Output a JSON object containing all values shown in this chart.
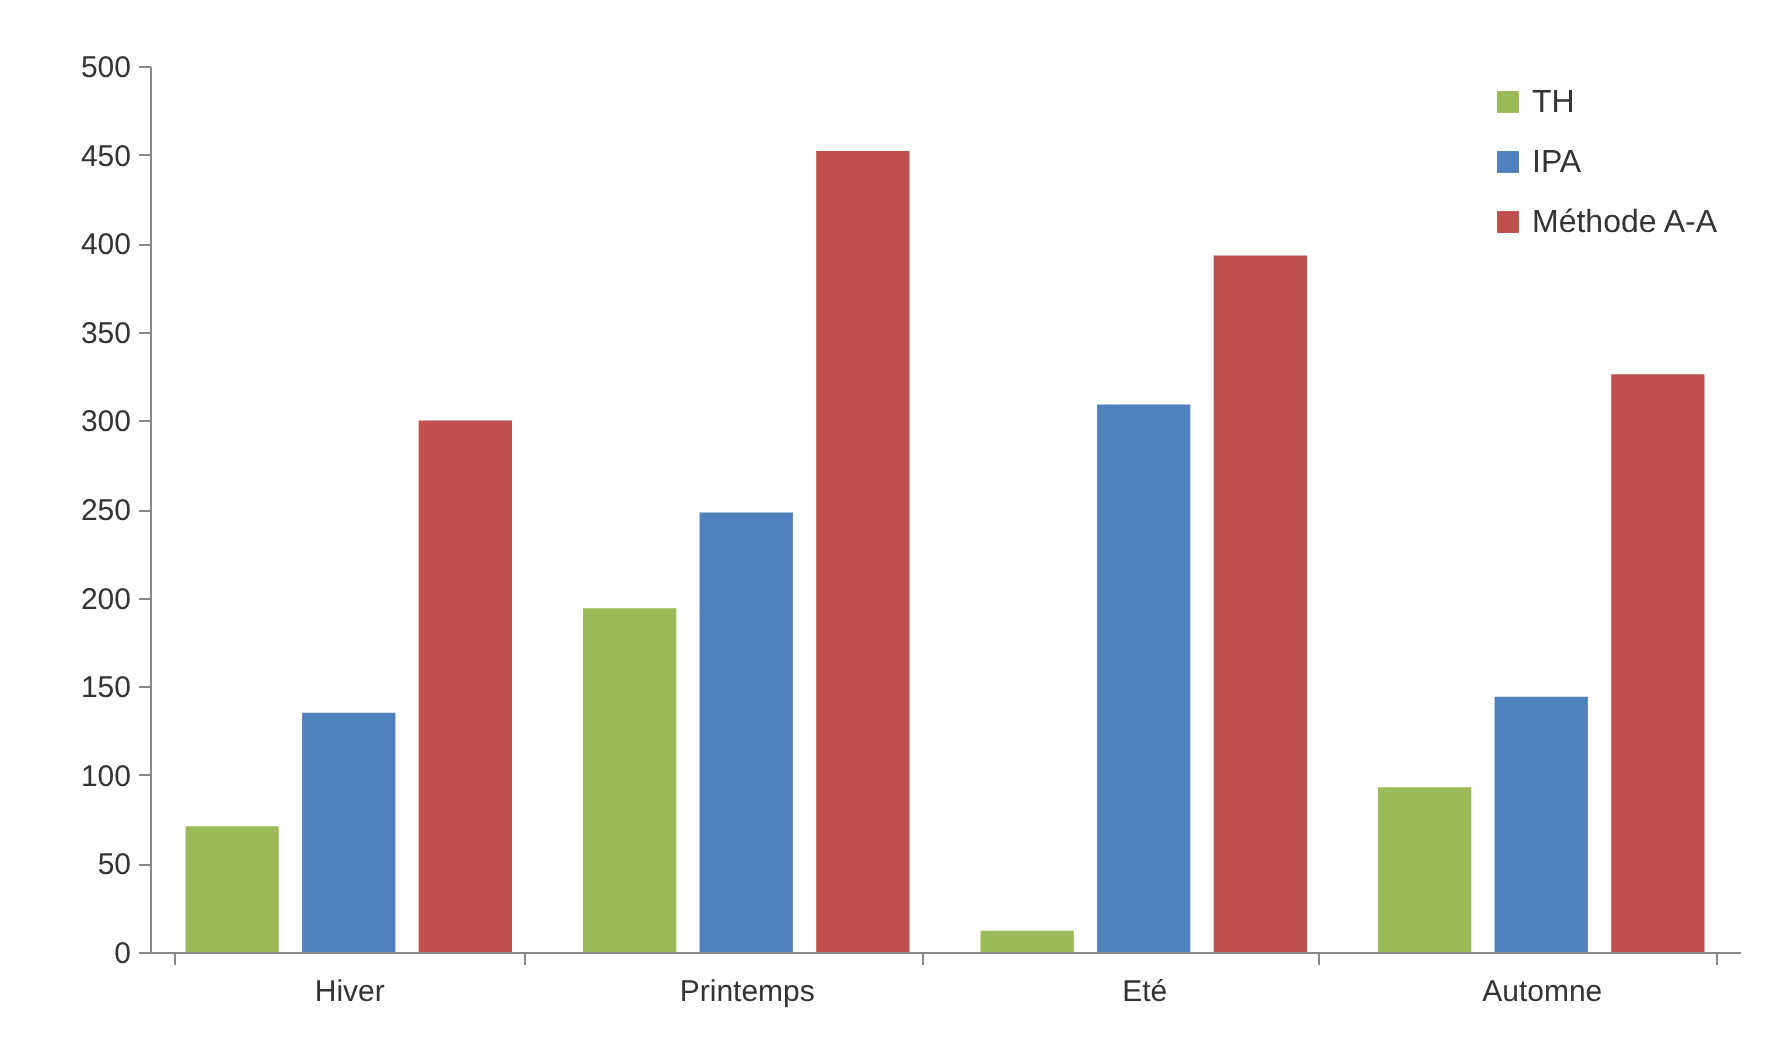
{
  "chart_data": {
    "type": "bar",
    "categories": [
      "Hiver",
      "Printemps",
      "Eté",
      "Automne"
    ],
    "series": [
      {
        "name": "TH",
        "color": "#9bbb59",
        "values": [
          71,
          194,
          12,
          93
        ]
      },
      {
        "name": "IPA",
        "color": "#4f81bd",
        "values": [
          135,
          248,
          309,
          144
        ]
      },
      {
        "name": "Méthode A-A",
        "color": "#c0504d",
        "values": [
          300,
          452,
          393,
          326
        ]
      }
    ],
    "ylim": [
      0,
      500
    ],
    "yticks": [
      0,
      50,
      100,
      150,
      200,
      250,
      300,
      350,
      400,
      450,
      500
    ],
    "grid": false,
    "legend": "top right"
  }
}
